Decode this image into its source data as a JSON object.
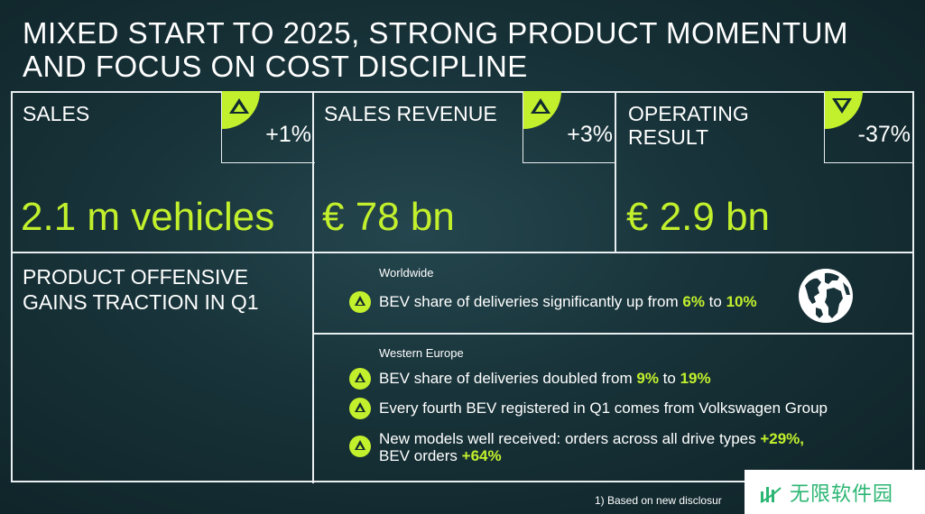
{
  "slide": {
    "title_line1": "MIXED START TO 2025, STRONG PRODUCT MOMENTUM",
    "title_line2": "AND FOCUS ON COST DISCIPLINE"
  },
  "kpis": [
    {
      "label": "SALES",
      "label_line2": "",
      "change": "+1%",
      "direction": "up",
      "value": "2.1 m vehicles"
    },
    {
      "label": "SALES REVENUE",
      "label_line2": "",
      "change": "+3%",
      "direction": "up",
      "value": "€ 78 bn"
    },
    {
      "label": "OPERATING",
      "label_line2": "RESULT",
      "change": "-37%",
      "direction": "down",
      "value": "€ 2.9 bn"
    }
  ],
  "offensive": {
    "title_line1": "PRODUCT OFFENSIVE",
    "title_line2": "GAINS TRACTION IN Q1",
    "worldwide": {
      "region": "Worldwide",
      "bullet": {
        "text": "BEV share of deliveries significantly up from ",
        "v1": "6%",
        "mid": " to ",
        "v2": "10%"
      }
    },
    "western_europe": {
      "region": "Western Europe",
      "bullet1": {
        "text": "BEV share of deliveries doubled from ",
        "v1": "9%",
        "mid": " to ",
        "v2": "19%"
      },
      "bullet2": {
        "text": "Every fourth BEV registered in Q1 comes from Volkswagen Group"
      },
      "bullet3": {
        "line1": "New models well received: orders across all drive types ",
        "v1": "+29%,",
        "line2": "BEV orders ",
        "v2": "+64%"
      }
    }
  },
  "footnote": "1)  Based on new disclosur",
  "watermark": {
    "text": "无限软件园"
  },
  "colors": {
    "accent": "#c2f02c",
    "background": "#173238",
    "border": "#e9eef0"
  },
  "icons": {
    "globe": "globe-icon",
    "up": "triangle-up-icon",
    "down": "triangle-down-icon"
  }
}
